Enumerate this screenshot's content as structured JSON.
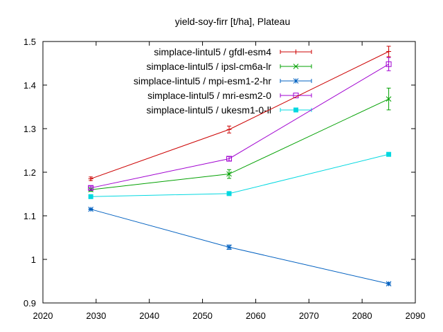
{
  "chart_data": {
    "type": "line",
    "title": "yield-soy-firr [t/ha], Plateau",
    "xlabel": "",
    "ylabel": "",
    "xlim": [
      2020,
      2090
    ],
    "ylim": [
      0.9,
      1.5
    ],
    "x_ticks": [
      2020,
      2030,
      2040,
      2050,
      2060,
      2070,
      2080,
      2090
    ],
    "y_ticks": [
      0.9,
      1.0,
      1.1,
      1.2,
      1.3,
      1.4,
      1.5
    ],
    "x_tick_labels": [
      "2020",
      "2030",
      "2040",
      "2050",
      "2060",
      "2070",
      "2080",
      "2090"
    ],
    "y_tick_labels": [
      "0.9",
      "1",
      "1.1",
      "1.2",
      "1.3",
      "1.4",
      "1.5"
    ],
    "grid": false,
    "legend_position": "top-left",
    "x": [
      2029,
      2055,
      2085
    ],
    "series": [
      {
        "name": "simplace-lintul5 / gfdl-esm4",
        "color": "#cc0000",
        "marker": "plus",
        "values": [
          1.185,
          1.298,
          1.477
        ],
        "errors": [
          0.004,
          0.008,
          0.012
        ]
      },
      {
        "name": "simplace-lintul5 / ipsl-cm6a-lr",
        "color": "#00a000",
        "marker": "cross",
        "values": [
          1.16,
          1.196,
          1.368
        ],
        "errors": [
          0.004,
          0.01,
          0.025
        ]
      },
      {
        "name": "simplace-lintul5 / mpi-esm1-2-hr",
        "color": "#0060c0",
        "marker": "star",
        "values": [
          1.115,
          1.028,
          0.944
        ],
        "errors": [
          0.002,
          0.005,
          0.003
        ]
      },
      {
        "name": "simplace-lintul5 / mri-esm2-0",
        "color": "#a000d0",
        "marker": "open-square",
        "values": [
          1.164,
          1.231,
          1.448
        ],
        "errors": [
          0.004,
          0.005,
          0.015
        ]
      },
      {
        "name": "simplace-lintul5 / ukesm1-0-ll",
        "color": "#00d8e0",
        "marker": "filled-square",
        "values": [
          1.144,
          1.151,
          1.241
        ],
        "errors": [
          0.002,
          0.002,
          0.003
        ]
      }
    ]
  }
}
